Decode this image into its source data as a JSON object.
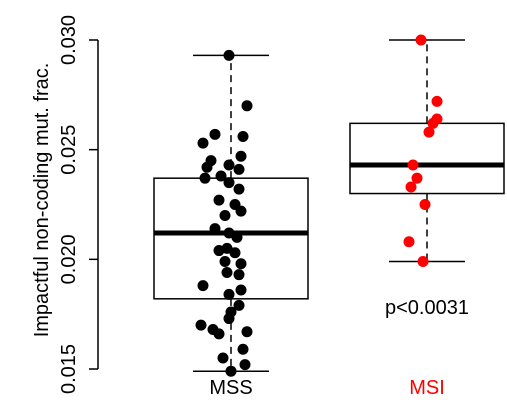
{
  "chart_data": {
    "type": "boxplot",
    "ylabel": "Impactful non-coding mut. frac.",
    "ylim": [
      0.015,
      0.03
    ],
    "yticks": [
      "0.015",
      "0.020",
      "0.025",
      "0.030"
    ],
    "annotation": "p<0.0031",
    "colors": {
      "box": "#000000",
      "MSS_points": "#000000",
      "MSI_points": "#ff0000",
      "MSI_label": "#ff0000"
    },
    "groups": [
      {
        "name": "MSS",
        "box": {
          "min": 0.0149,
          "q1": 0.0182,
          "median": 0.0212,
          "q3": 0.0237,
          "max": 0.0293
        },
        "points": [
          {
            "x": -0.01,
            "y": 0.0293
          },
          {
            "x": 0.08,
            "y": 0.027
          },
          {
            "x": -0.08,
            "y": 0.0257
          },
          {
            "x": 0.06,
            "y": 0.0256
          },
          {
            "x": -0.14,
            "y": 0.0253
          },
          {
            "x": 0.05,
            "y": 0.0247
          },
          {
            "x": -0.1,
            "y": 0.0245
          },
          {
            "x": -0.12,
            "y": 0.0242
          },
          {
            "x": -0.01,
            "y": 0.0243
          },
          {
            "x": 0.04,
            "y": 0.0241
          },
          {
            "x": -0.13,
            "y": 0.0237
          },
          {
            "x": -0.05,
            "y": 0.0238
          },
          {
            "x": -0.01,
            "y": 0.0235
          },
          {
            "x": 0.04,
            "y": 0.0232
          },
          {
            "x": -0.06,
            "y": 0.0227
          },
          {
            "x": 0.02,
            "y": 0.0225
          },
          {
            "x": -0.03,
            "y": 0.022
          },
          {
            "x": 0.05,
            "y": 0.0222
          },
          {
            "x": -0.08,
            "y": 0.0214
          },
          {
            "x": -0.01,
            "y": 0.0212
          },
          {
            "x": 0.03,
            "y": 0.021
          },
          {
            "x": -0.02,
            "y": 0.0205
          },
          {
            "x": -0.06,
            "y": 0.0204
          },
          {
            "x": 0.02,
            "y": 0.0203
          },
          {
            "x": -0.03,
            "y": 0.0199
          },
          {
            "x": 0.05,
            "y": 0.0198
          },
          {
            "x": -0.02,
            "y": 0.0194
          },
          {
            "x": 0.04,
            "y": 0.0193
          },
          {
            "x": -0.14,
            "y": 0.0188
          },
          {
            "x": 0.05,
            "y": 0.0186
          },
          {
            "x": -0.01,
            "y": 0.0184
          },
          {
            "x": 0.04,
            "y": 0.0179
          },
          {
            "x": 0.0,
            "y": 0.0176
          },
          {
            "x": -0.01,
            "y": 0.0173
          },
          {
            "x": -0.15,
            "y": 0.017
          },
          {
            "x": -0.09,
            "y": 0.0168
          },
          {
            "x": -0.06,
            "y": 0.0166
          },
          {
            "x": 0.08,
            "y": 0.0167
          },
          {
            "x": 0.06,
            "y": 0.0159
          },
          {
            "x": -0.04,
            "y": 0.0155
          },
          {
            "x": 0.07,
            "y": 0.0152
          },
          {
            "x": 0.0,
            "y": 0.0149
          }
        ]
      },
      {
        "name": "MSI",
        "box": {
          "min": 0.0199,
          "q1": 0.023,
          "median": 0.0243,
          "q3": 0.0262,
          "max": 0.03
        },
        "points": [
          {
            "x": -0.03,
            "y": 0.03
          },
          {
            "x": 0.05,
            "y": 0.0272
          },
          {
            "x": 0.05,
            "y": 0.0264
          },
          {
            "x": 0.03,
            "y": 0.0262
          },
          {
            "x": 0.01,
            "y": 0.0258
          },
          {
            "x": -0.07,
            "y": 0.0243
          },
          {
            "x": -0.05,
            "y": 0.0237
          },
          {
            "x": -0.08,
            "y": 0.0233
          },
          {
            "x": -0.01,
            "y": 0.0225
          },
          {
            "x": -0.09,
            "y": 0.0208
          },
          {
            "x": -0.02,
            "y": 0.0199
          }
        ]
      }
    ]
  }
}
